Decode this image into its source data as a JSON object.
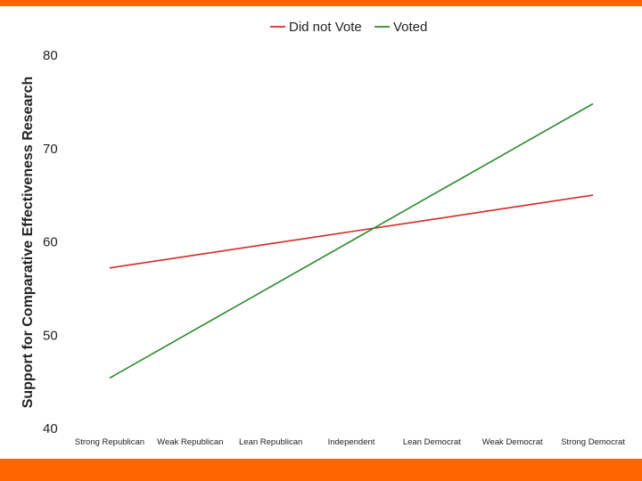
{
  "theme": {
    "accent": "#ff6600",
    "series_colors": [
      "#d42a2a",
      "#2a8a2a"
    ]
  },
  "chart_data": {
    "type": "line",
    "title": "",
    "xlabel": "",
    "ylabel": "Support for Comparative Effectiveness Research",
    "ylim": [
      40,
      80
    ],
    "yticks": [
      40,
      50,
      60,
      70,
      80
    ],
    "categories": [
      "Strong Republican",
      "Weak Republican",
      "Lean Republican",
      "Independent",
      "Lean Democrat",
      "Weak Democrat",
      "Strong Democrat"
    ],
    "series": [
      {
        "name": "Did not Vote",
        "values": [
          57.2,
          58.5,
          59.8,
          61.1,
          62.4,
          63.7,
          65.0
        ]
      },
      {
        "name": "Voted",
        "values": [
          45.4,
          50.3,
          55.2,
          60.1,
          65.0,
          69.9,
          74.8
        ]
      }
    ],
    "legend": "top-center",
    "grid": false
  }
}
